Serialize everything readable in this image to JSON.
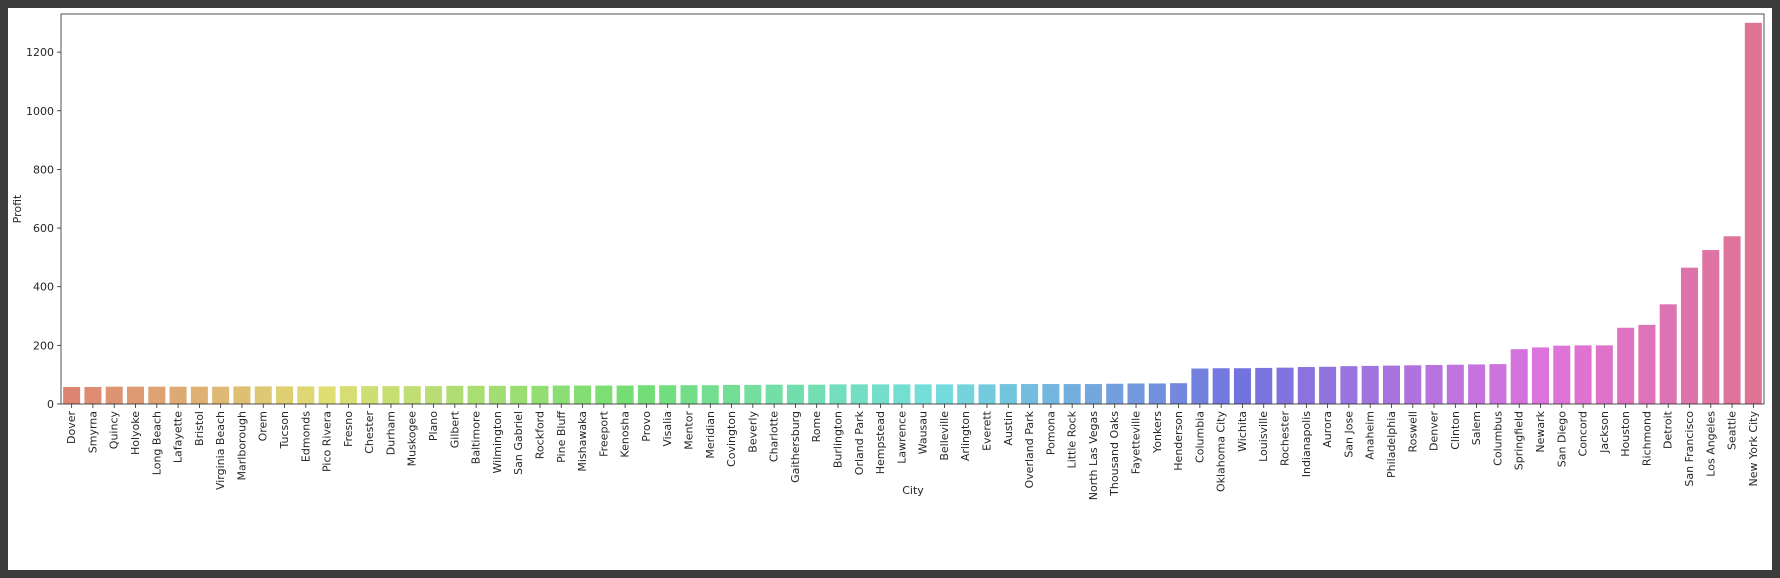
{
  "colors": {
    "window_frame": "#3b3b3b",
    "background": "#ffffff",
    "axis": "#262626"
  },
  "chart_data": {
    "type": "bar",
    "xlabel": "City",
    "ylabel": "Profit",
    "ylim": [
      0,
      1330
    ],
    "yticks": [
      0,
      200,
      400,
      600,
      800,
      1000,
      1200
    ],
    "grid": false,
    "legend": "none",
    "palette": "husl",
    "categories": [
      "Dover",
      "Smyrna",
      "Quincy",
      "Holyoke",
      "Long Beach",
      "Lafayette",
      "Bristol",
      "Virginia Beach",
      "Marlborough",
      "Orem",
      "Tucson",
      "Edmonds",
      "Pico Rivera",
      "Fresno",
      "Chester",
      "Durham",
      "Muskogee",
      "Plano",
      "Gilbert",
      "Baltimore",
      "Wilmington",
      "San Gabriel",
      "Rockford",
      "Pine Bluff",
      "Mishawaka",
      "Freeport",
      "Kenosha",
      "Provo",
      "Visalia",
      "Mentor",
      "Meridian",
      "Covington",
      "Beverly",
      "Charlotte",
      "Gaithersburg",
      "Rome",
      "Burlington",
      "Orland Park",
      "Hempstead",
      "Lawrence",
      "Wausau",
      "Belleville",
      "Arlington",
      "Everett",
      "Austin",
      "Overland Park",
      "Pomona",
      "Little Rock",
      "North Las Vegas",
      "Thousand Oaks",
      "Fayetteville",
      "Yonkers",
      "Henderson",
      "Columbia",
      "Oklahoma City",
      "Wichita",
      "Louisville",
      "Rochester",
      "Indianapolis",
      "Aurora",
      "San Jose",
      "Anaheim",
      "Philadelphia",
      "Roswell",
      "Denver",
      "Clinton",
      "Salem",
      "Columbus",
      "Springfield",
      "Newark",
      "San Diego",
      "Concord",
      "Jackson",
      "Houston",
      "Richmond",
      "Detroit",
      "San Francisco",
      "Los Angeles",
      "Seattle",
      "New York City"
    ],
    "values": [
      58,
      58,
      59,
      59,
      59,
      59,
      59,
      59,
      60,
      60,
      60,
      60,
      60,
      61,
      61,
      61,
      61,
      61,
      62,
      62,
      62,
      62,
      62,
      63,
      63,
      63,
      63,
      64,
      64,
      64,
      64,
      65,
      65,
      66,
      66,
      66,
      67,
      67,
      67,
      67,
      67,
      67,
      67,
      67,
      68,
      68,
      68,
      68,
      68,
      69,
      70,
      70,
      71,
      121,
      122,
      122,
      123,
      124,
      126,
      127,
      129,
      130,
      131,
      132,
      133,
      134,
      135,
      136,
      187,
      193,
      199,
      200,
      200,
      260,
      270,
      340,
      465,
      525,
      572,
      1300
    ]
  }
}
